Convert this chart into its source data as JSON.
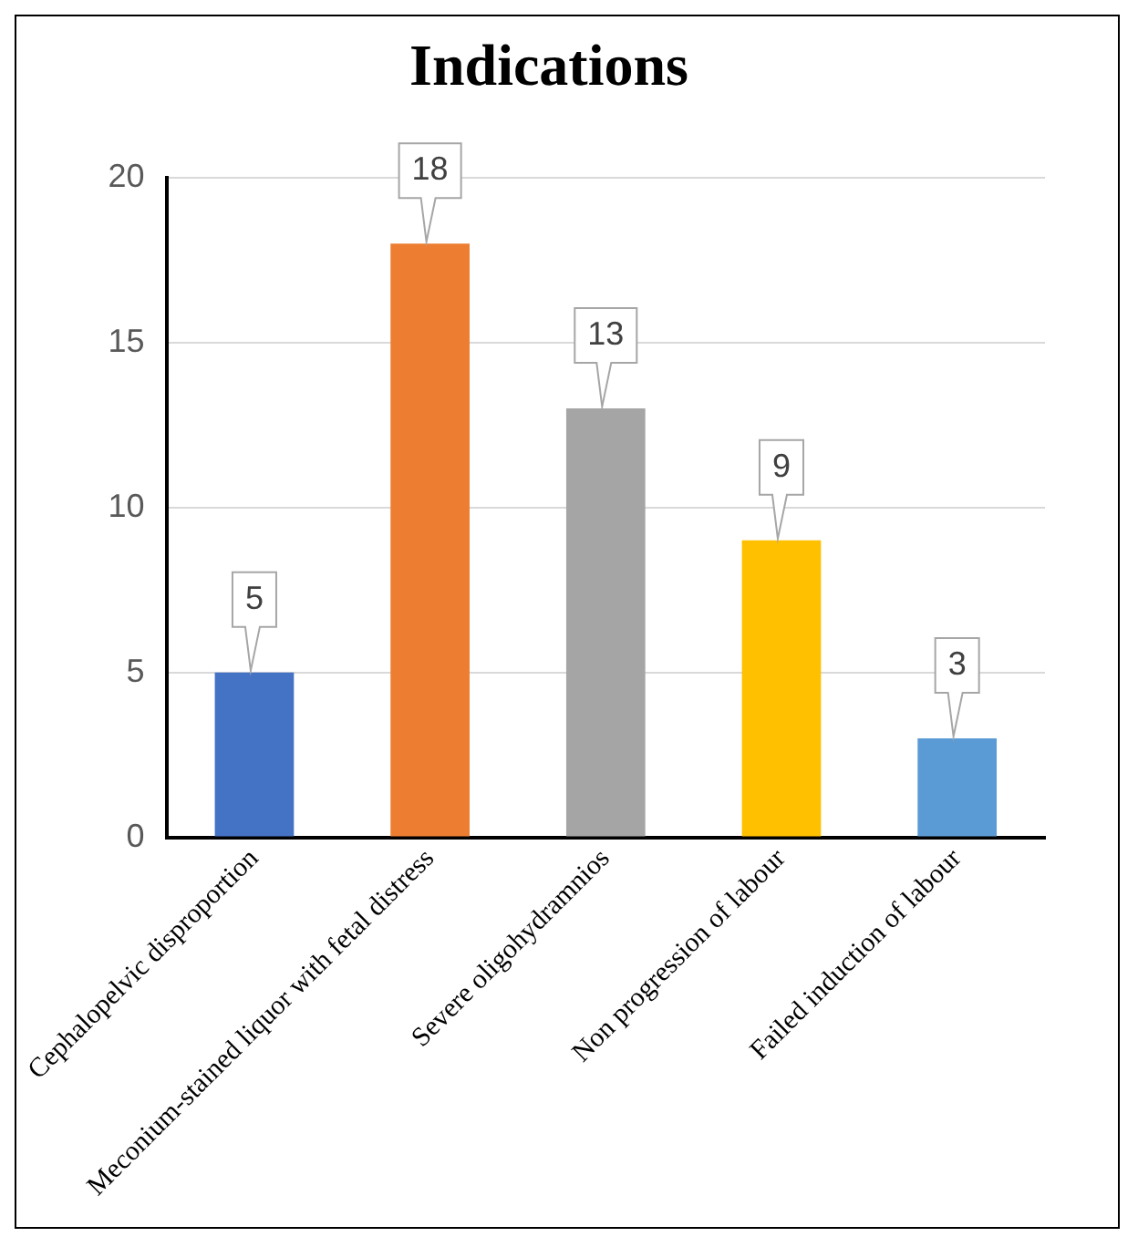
{
  "chart_data": {
    "type": "bar",
    "title": "Indications",
    "categories": [
      "Cephalopelvic disproportion",
      "Meconium-stained liquor with fetal distress",
      "Severe oligohydramnios",
      "Non progression of labour",
      "Failed induction of labour"
    ],
    "values": [
      5,
      18,
      13,
      9,
      3
    ],
    "colors": [
      "#4472c4",
      "#ed7d31",
      "#a5a5a5",
      "#ffc000",
      "#5b9bd5"
    ],
    "ylim": [
      0,
      20
    ],
    "yticks": [
      0,
      5,
      10,
      15,
      20
    ],
    "grid": "y",
    "data_labels": true,
    "legend": false
  }
}
